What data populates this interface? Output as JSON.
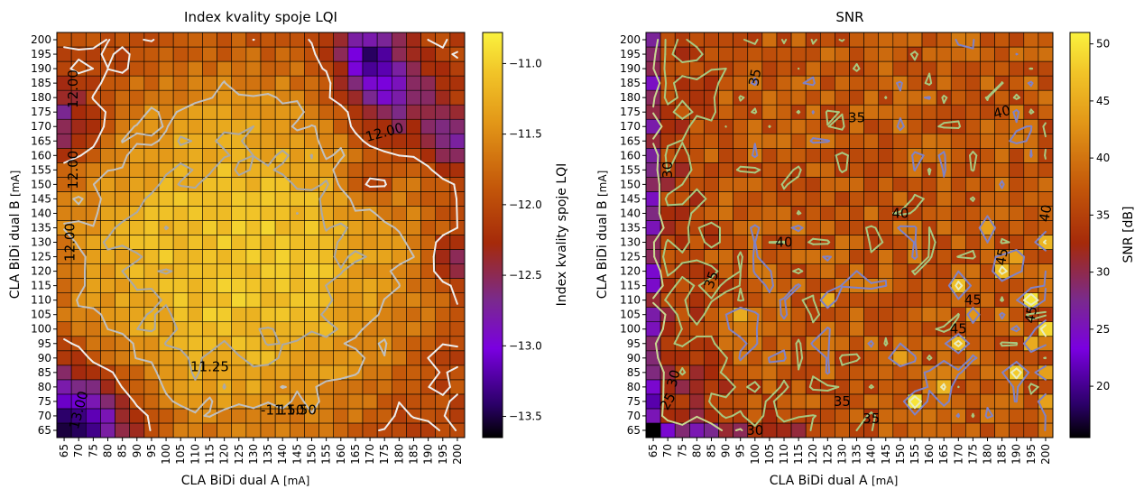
{
  "chart_data": [
    {
      "type": "heatmap",
      "title": "Index kvality spoje LQI",
      "xlabel": "CLA BiDi dual A",
      "xlabel_unit": "[mA]",
      "ylabel": "CLA BiDi dual B",
      "ylabel_unit": "[mA]",
      "x": [
        65,
        70,
        75,
        80,
        85,
        90,
        95,
        100,
        105,
        110,
        115,
        120,
        125,
        130,
        135,
        140,
        145,
        150,
        155,
        160,
        165,
        170,
        175,
        180,
        185,
        190,
        195,
        200
      ],
      "y": [
        65,
        70,
        75,
        80,
        85,
        90,
        95,
        100,
        105,
        110,
        115,
        120,
        125,
        130,
        135,
        140,
        145,
        150,
        155,
        160,
        165,
        170,
        175,
        180,
        185,
        190,
        195,
        200
      ],
      "colorbar": {
        "label": "Index kvality spoje LQI",
        "range": [
          -13.65,
          -10.78
        ],
        "ticks": [
          -11.0,
          -11.5,
          -12.0,
          -12.5,
          -13.0,
          -13.5
        ],
        "tick_labels": [
          "−11.0",
          "−11.5",
          "−12.0",
          "−12.5",
          "−13.0",
          "−13.5"
        ],
        "colormap": "gnuplot-like"
      },
      "contour_labels": [
        "12.00",
        "12.00",
        "12.00",
        "12.00",
        "13.00",
        "11.25",
        "11.50",
        "-11.50"
      ],
      "grid": true,
      "model": {
        "base": -12.0,
        "peak": 0.95,
        "center": [
          125,
          125
        ],
        "radius": 55,
        "edge_low": [
          {
            "x": 65,
            "y": 65,
            "v": -1.5,
            "r": 16
          },
          {
            "x": 175,
            "y": 180,
            "v": -0.9,
            "r": 12
          },
          {
            "x": 170,
            "y": 195,
            "v": -1.0,
            "r": 6
          },
          {
            "x": 200,
            "y": 165,
            "v": -0.7,
            "r": 7
          },
          {
            "x": 200,
            "y": 125,
            "v": -0.6,
            "r": 6
          },
          {
            "x": 170,
            "y": 150,
            "v": -0.5,
            "r": 6
          },
          {
            "x": 65,
            "y": 170,
            "v": -0.7,
            "r": 9
          }
        ]
      }
    },
    {
      "type": "heatmap",
      "title": "SNR",
      "xlabel": "CLA BiDi dual A",
      "xlabel_unit": "[mA]",
      "ylabel": "CLA BiDi dual B",
      "ylabel_unit": "[mA]",
      "x": [
        65,
        70,
        75,
        80,
        85,
        90,
        95,
        100,
        105,
        110,
        115,
        120,
        125,
        130,
        135,
        140,
        145,
        150,
        155,
        160,
        165,
        170,
        175,
        180,
        185,
        190,
        195,
        200
      ],
      "y": [
        65,
        70,
        75,
        80,
        85,
        90,
        95,
        100,
        105,
        110,
        115,
        120,
        125,
        130,
        135,
        140,
        145,
        150,
        155,
        160,
        165,
        170,
        175,
        180,
        185,
        190,
        195,
        200
      ],
      "colorbar": {
        "label": "SNR [dB]",
        "range": [
          15.5,
          51
        ],
        "ticks": [
          20,
          25,
          30,
          35,
          40,
          45,
          50
        ],
        "tick_labels": [
          "20",
          "25",
          "30",
          "35",
          "40",
          "45",
          "50"
        ],
        "colormap": "gnuplot-like"
      },
      "contour_labels": [
        "30",
        "30",
        "30",
        "35",
        "35",
        "35",
        "35",
        "35",
        "40",
        "40",
        "40",
        "40",
        "45",
        "45",
        "45",
        "45",
        "25"
      ],
      "grid": true,
      "model": {
        "base": 37.5,
        "bright_cells": [
          {
            "x": 200,
            "y": 100,
            "v": 49
          },
          {
            "x": 195,
            "y": 110,
            "v": 50
          },
          {
            "x": 190,
            "y": 85,
            "v": 48
          },
          {
            "x": 185,
            "y": 120,
            "v": 47
          },
          {
            "x": 170,
            "y": 95,
            "v": 47
          },
          {
            "x": 165,
            "y": 80,
            "v": 46
          },
          {
            "x": 155,
            "y": 75,
            "v": 50
          },
          {
            "x": 125,
            "y": 110,
            "v": 45
          },
          {
            "x": 95,
            "y": 105,
            "v": 45
          },
          {
            "x": 200,
            "y": 130,
            "v": 46
          },
          {
            "x": 190,
            "y": 125,
            "v": 44
          },
          {
            "x": 200,
            "y": 75,
            "v": 44
          },
          {
            "x": 200,
            "y": 85,
            "v": 44
          },
          {
            "x": 180,
            "y": 135,
            "v": 44
          },
          {
            "x": 170,
            "y": 115,
            "v": 47
          },
          {
            "x": 195,
            "y": 95,
            "v": 45
          },
          {
            "x": 175,
            "y": 105,
            "v": 43
          },
          {
            "x": 150,
            "y": 90,
            "v": 44
          }
        ]
      }
    }
  ]
}
